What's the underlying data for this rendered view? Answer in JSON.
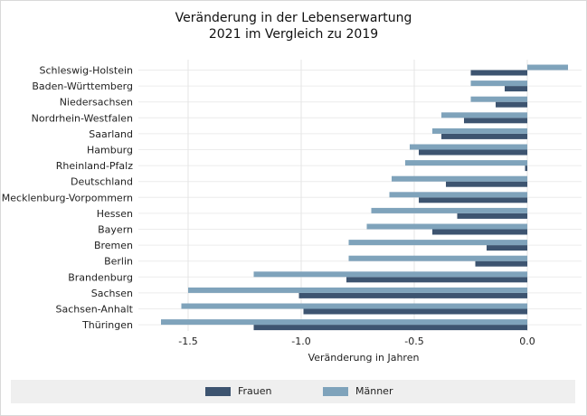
{
  "chart_data": {
    "type": "bar",
    "orientation": "horizontal",
    "title": [
      "Veränderung in der Lebenserwartung",
      "2021 im Vergleich zu 2019"
    ],
    "xlabel": "Veränderung in Jahren",
    "xlim": [
      -1.7,
      0.2
    ],
    "xticks": [
      -1.5,
      -1.0,
      -0.5,
      0.0
    ],
    "xtick_labels": [
      "-1.5",
      "-1.0",
      "-0.5",
      "0.0"
    ],
    "grid": true,
    "legend_position": "bottom",
    "categories": [
      "Schleswig-Holstein",
      "Baden-Württemberg",
      "Niedersachsen",
      "Nordrhein-Westfalen",
      "Saarland",
      "Hamburg",
      "Rheinland-Pfalz",
      "Deutschland",
      "Mecklenburg-Vorpommern",
      "Hessen",
      "Bayern",
      "Bremen",
      "Berlin",
      "Brandenburg",
      "Sachsen",
      "Sachsen-Anhalt",
      "Thüringen"
    ],
    "series": [
      {
        "name": "Frauen",
        "color": "#3d5470",
        "values": [
          -0.25,
          -0.1,
          -0.14,
          -0.28,
          -0.38,
          -0.48,
          -0.01,
          -0.36,
          -0.48,
          -0.31,
          -0.42,
          -0.18,
          -0.23,
          -0.8,
          -1.01,
          -0.99,
          -1.21
        ]
      },
      {
        "name": "Männer",
        "color": "#7fa3bb",
        "values": [
          0.18,
          -0.25,
          -0.25,
          -0.38,
          -0.42,
          -0.52,
          -0.54,
          -0.6,
          -0.61,
          -0.69,
          -0.71,
          -0.79,
          -0.79,
          -1.21,
          -1.5,
          -1.53,
          -1.62
        ]
      }
    ]
  }
}
